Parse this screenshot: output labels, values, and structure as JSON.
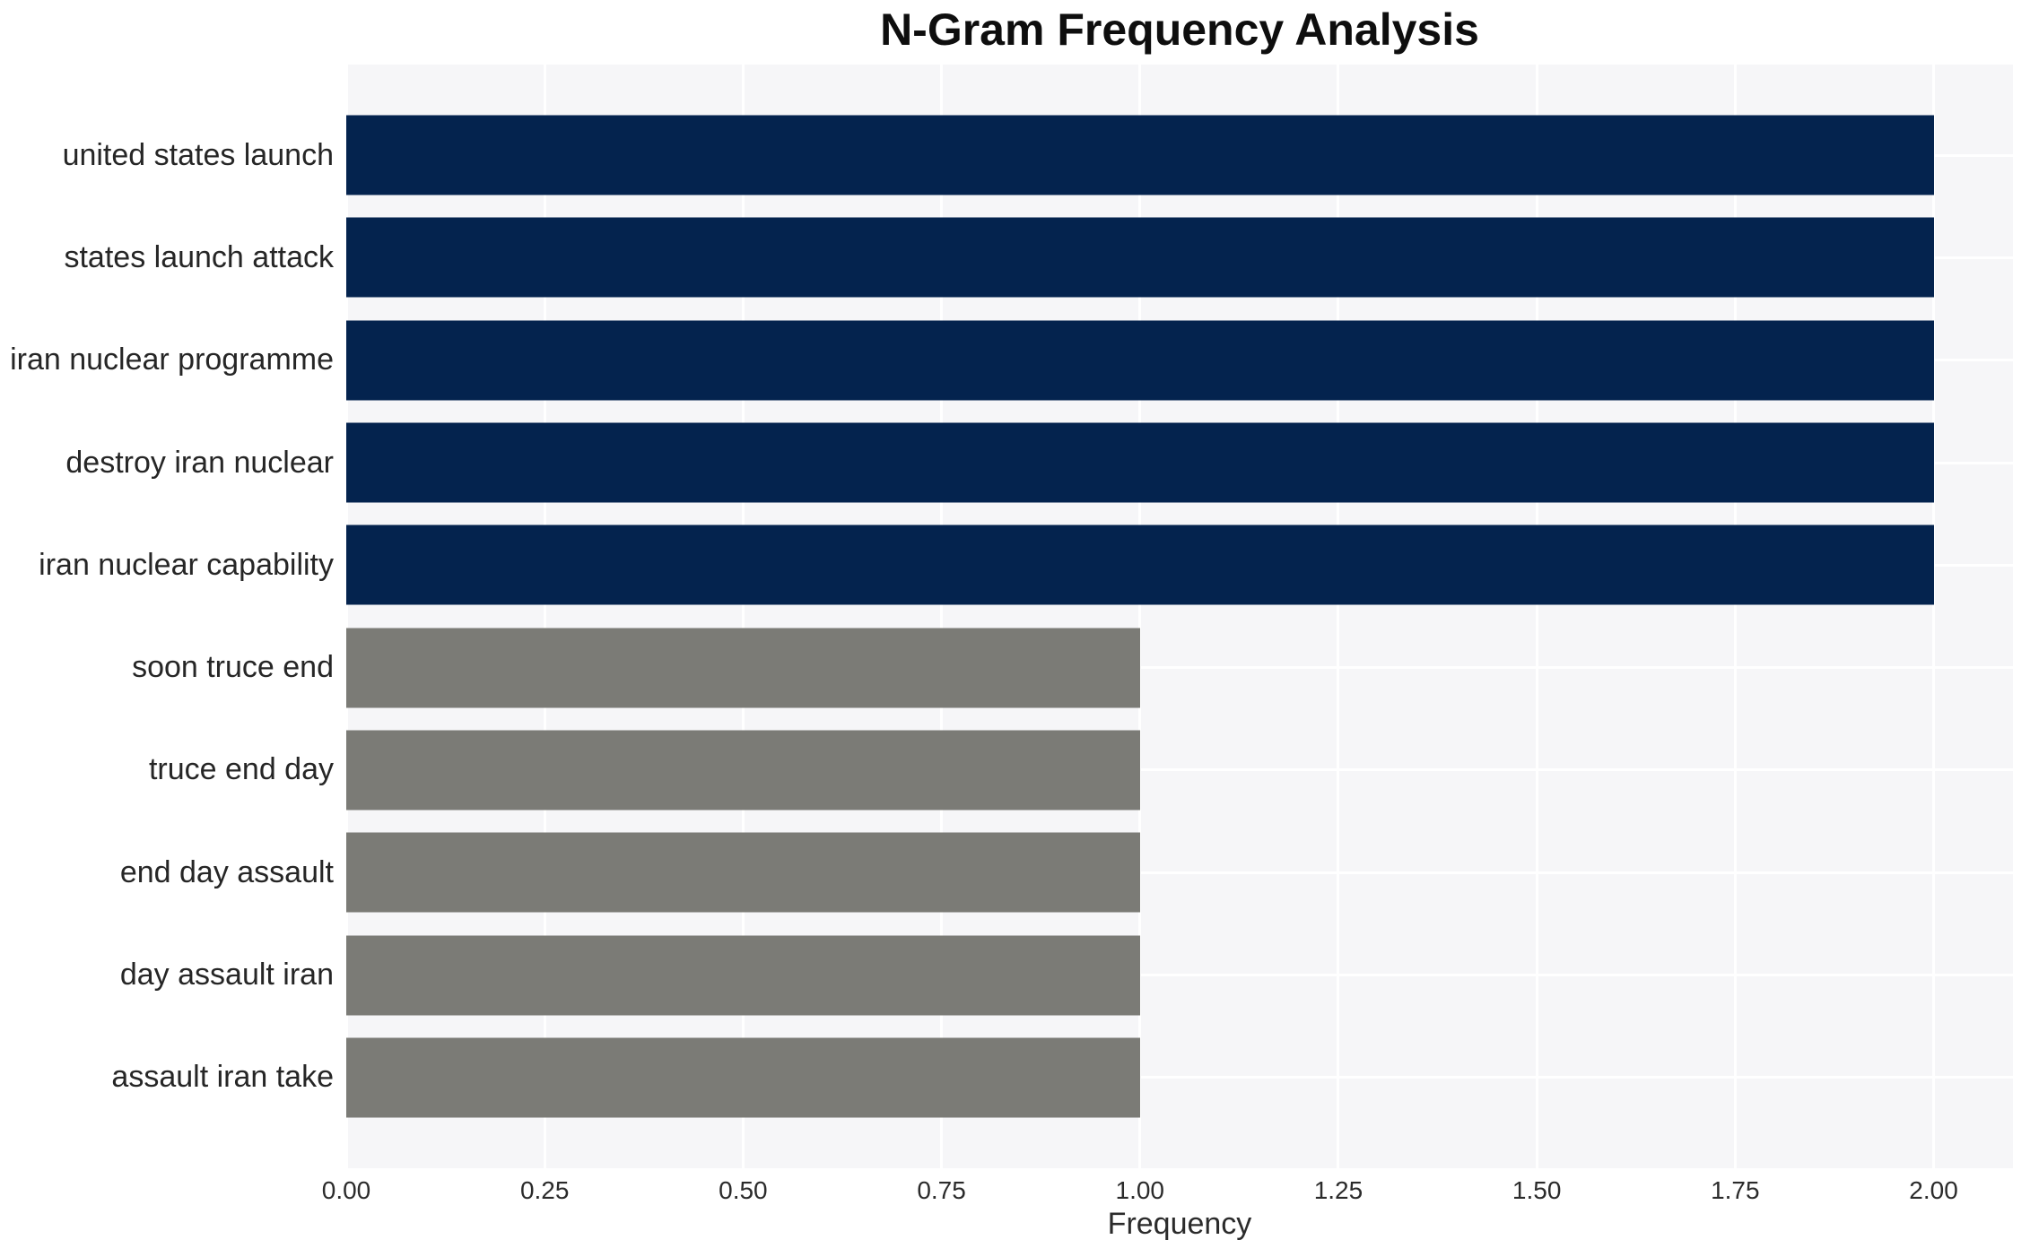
{
  "chart_data": {
    "type": "bar",
    "orientation": "horizontal",
    "title": "N-Gram Frequency Analysis",
    "xlabel": "Frequency",
    "ylabel": "",
    "categories": [
      "united states launch",
      "states launch attack",
      "iran nuclear programme",
      "destroy iran nuclear",
      "iran nuclear capability",
      "soon truce end",
      "truce end day",
      "end day assault",
      "day assault iran",
      "assault iran take"
    ],
    "values": [
      2,
      2,
      2,
      2,
      2,
      1,
      1,
      1,
      1,
      1
    ],
    "bar_colors": [
      "#04234e",
      "#04234e",
      "#04234e",
      "#04234e",
      "#04234e",
      "#7b7b76",
      "#7b7b76",
      "#7b7b76",
      "#7b7b76",
      "#7b7b76"
    ],
    "xlim": [
      0,
      2.1
    ],
    "xticks": [
      {
        "value": 0.0,
        "label": "0.00"
      },
      {
        "value": 0.25,
        "label": "0.25"
      },
      {
        "value": 0.5,
        "label": "0.50"
      },
      {
        "value": 0.75,
        "label": "0.75"
      },
      {
        "value": 1.0,
        "label": "1.00"
      },
      {
        "value": 1.25,
        "label": "1.25"
      },
      {
        "value": 1.5,
        "label": "1.50"
      },
      {
        "value": 1.75,
        "label": "1.75"
      },
      {
        "value": 2.0,
        "label": "2.00"
      }
    ],
    "grid": true,
    "legend": false,
    "colors": {
      "plot_background": "#f6f6f8",
      "gridline": "#ffffff",
      "high_value_bar": "#04234e",
      "low_value_bar": "#7b7b76",
      "title_text": "#0e0e0e",
      "axis_text": "#2b2b2b",
      "category_text": "#262626"
    }
  }
}
